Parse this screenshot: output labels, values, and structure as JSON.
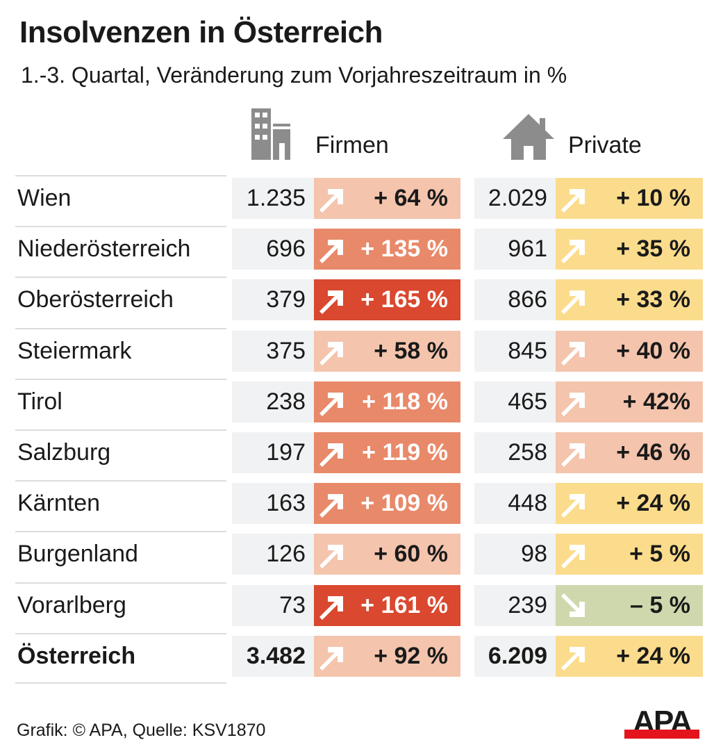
{
  "title": "Insolvenzen in Österreich",
  "subtitle": "1.-3. Quartal, Veränderung zum Vorjahreszeitraum in %",
  "footer": "Grafik: © APA, Quelle: KSV1870",
  "logo_text": "APA",
  "colors": {
    "light": "#f4c4ad",
    "medium": "#e8896a",
    "dark": "#d9482f",
    "yellow": "#fbdc8c",
    "green": "#cfd8ad",
    "cell": "#f1f2f3",
    "icon": "#8c8c8c"
  },
  "chart_data": {
    "type": "table",
    "columns": [
      {
        "label": "Firmen",
        "icon": "office-building-icon"
      },
      {
        "label": "Private",
        "icon": "house-icon"
      }
    ],
    "rows": [
      {
        "region": "Wien",
        "firmen": "1.235",
        "firmen_pct": "+ 64 %",
        "firmen_level": "light",
        "private": "2.029",
        "private_pct": "+ 10 %",
        "private_level": "yellow",
        "private_dir": "up"
      },
      {
        "region": "Niederösterreich",
        "firmen": "696",
        "firmen_pct": "+ 135 %",
        "firmen_level": "medium",
        "private": "961",
        "private_pct": "+ 35 %",
        "private_level": "yellow",
        "private_dir": "up"
      },
      {
        "region": "Oberösterreich",
        "firmen": "379",
        "firmen_pct": "+ 165 %",
        "firmen_level": "dark",
        "private": "866",
        "private_pct": "+ 33 %",
        "private_level": "yellow",
        "private_dir": "up"
      },
      {
        "region": "Steiermark",
        "firmen": "375",
        "firmen_pct": "+ 58 %",
        "firmen_level": "light",
        "private": "845",
        "private_pct": "+ 40 %",
        "private_level": "light",
        "private_dir": "up"
      },
      {
        "region": "Tirol",
        "firmen": "238",
        "firmen_pct": "+ 118 %",
        "firmen_level": "medium",
        "private": "465",
        "private_pct": "+ 42%",
        "private_level": "light",
        "private_dir": "up"
      },
      {
        "region": "Salzburg",
        "firmen": "197",
        "firmen_pct": "+ 119 %",
        "firmen_level": "medium",
        "private": "258",
        "private_pct": "+ 46 %",
        "private_level": "light",
        "private_dir": "up"
      },
      {
        "region": "Kärnten",
        "firmen": "163",
        "firmen_pct": "+ 109 %",
        "firmen_level": "medium",
        "private": "448",
        "private_pct": "+ 24 %",
        "private_level": "yellow",
        "private_dir": "up"
      },
      {
        "region": "Burgenland",
        "firmen": "126",
        "firmen_pct": "+ 60 %",
        "firmen_level": "light",
        "private": "98",
        "private_pct": "+ 5 %",
        "private_level": "yellow",
        "private_dir": "up"
      },
      {
        "region": "Vorarlberg",
        "firmen": "73",
        "firmen_pct": "+ 161 %",
        "firmen_level": "dark",
        "private": "239",
        "private_pct": "– 5 %",
        "private_level": "green",
        "private_dir": "down"
      },
      {
        "region": "Österreich",
        "firmen": "3.482",
        "firmen_pct": "+ 92 %",
        "firmen_level": "light",
        "private": "6.209",
        "private_pct": "+ 24 %",
        "private_level": "yellow",
        "private_dir": "up",
        "total": true
      }
    ]
  }
}
